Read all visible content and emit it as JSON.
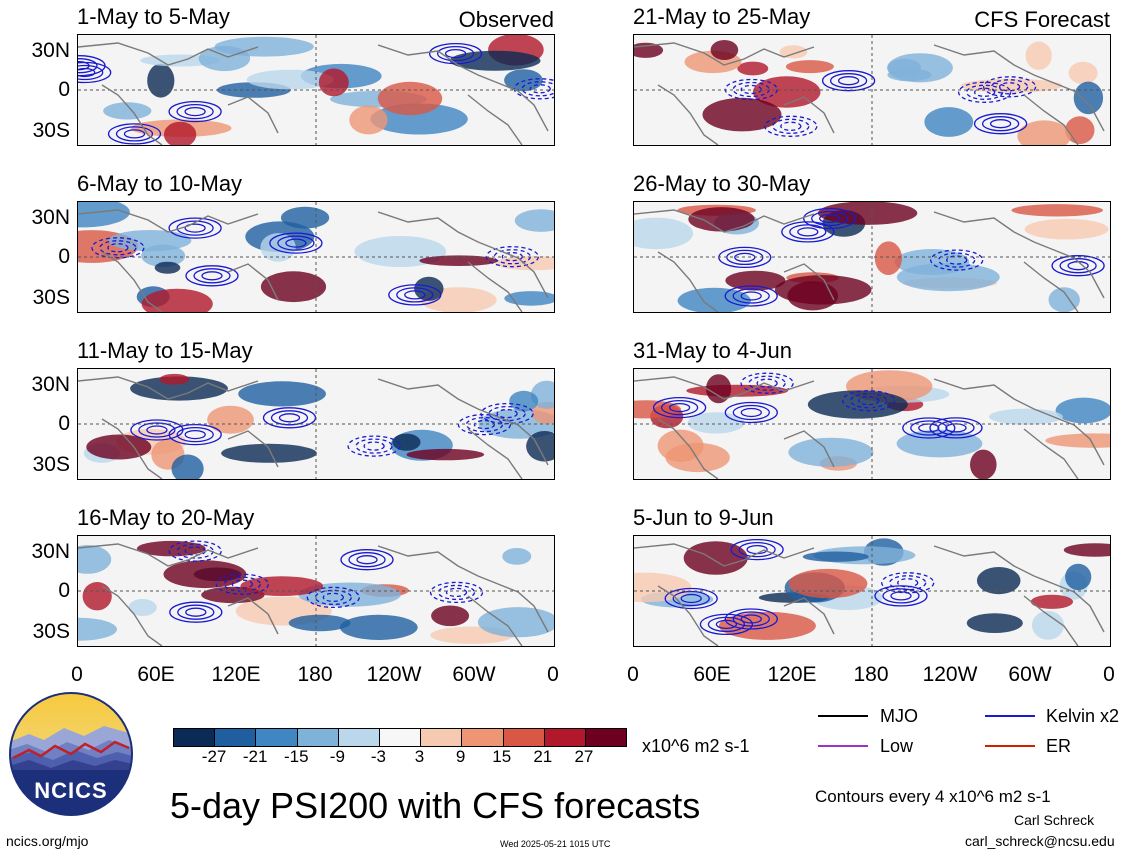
{
  "chart_data": {
    "type": "heatmap",
    "title": "5-day PSI200 with CFS forecasts",
    "panels": [
      {
        "label": "1-May to 5-May",
        "tag": "Observed"
      },
      {
        "label": "6-May to 10-May",
        "tag": ""
      },
      {
        "label": "11-May to 15-May",
        "tag": ""
      },
      {
        "label": "16-May to 20-May",
        "tag": ""
      },
      {
        "label": "21-May to 25-May",
        "tag": "CFS Forecast"
      },
      {
        "label": "26-May to 30-May",
        "tag": ""
      },
      {
        "label": "31-May to 4-Jun",
        "tag": ""
      },
      {
        "label": "5-Jun to 9-Jun",
        "tag": ""
      }
    ],
    "lat_ticks": [
      "30N",
      "0",
      "30S"
    ],
    "lon_ticks": [
      "0",
      "60E",
      "120E",
      "180",
      "120W",
      "60W",
      "0"
    ],
    "colorbar": {
      "ticks": [
        "-27",
        "-21",
        "-15",
        "-9",
        "-3",
        "3",
        "9",
        "15",
        "21",
        "27"
      ],
      "units": "x10^6 m2 s-1",
      "colors": [
        "#0b2a55",
        "#1f5fa0",
        "#3f86c2",
        "#7fb2d9",
        "#bad7ec",
        "#f7f7f7",
        "#f6c9b1",
        "#ee9674",
        "#d95845",
        "#b2182b",
        "#6d0020"
      ]
    },
    "legend": [
      {
        "label": "MJO",
        "color": "#000000"
      },
      {
        "label": "Kelvin x2",
        "color": "#1a1acf"
      },
      {
        "label": "Low",
        "color": "#9933cc"
      },
      {
        "label": "ER",
        "color": "#cc2200"
      }
    ]
  },
  "contour_note": "Contours every 4 x10^6 m2 s-1",
  "logo_text": "NCICS",
  "website": "ncics.org/mjo",
  "timestamp": "Wed 2025-05-21 1015 UTC",
  "author": "Carl Schreck",
  "email": "carl_schreck@ncsu.edu"
}
